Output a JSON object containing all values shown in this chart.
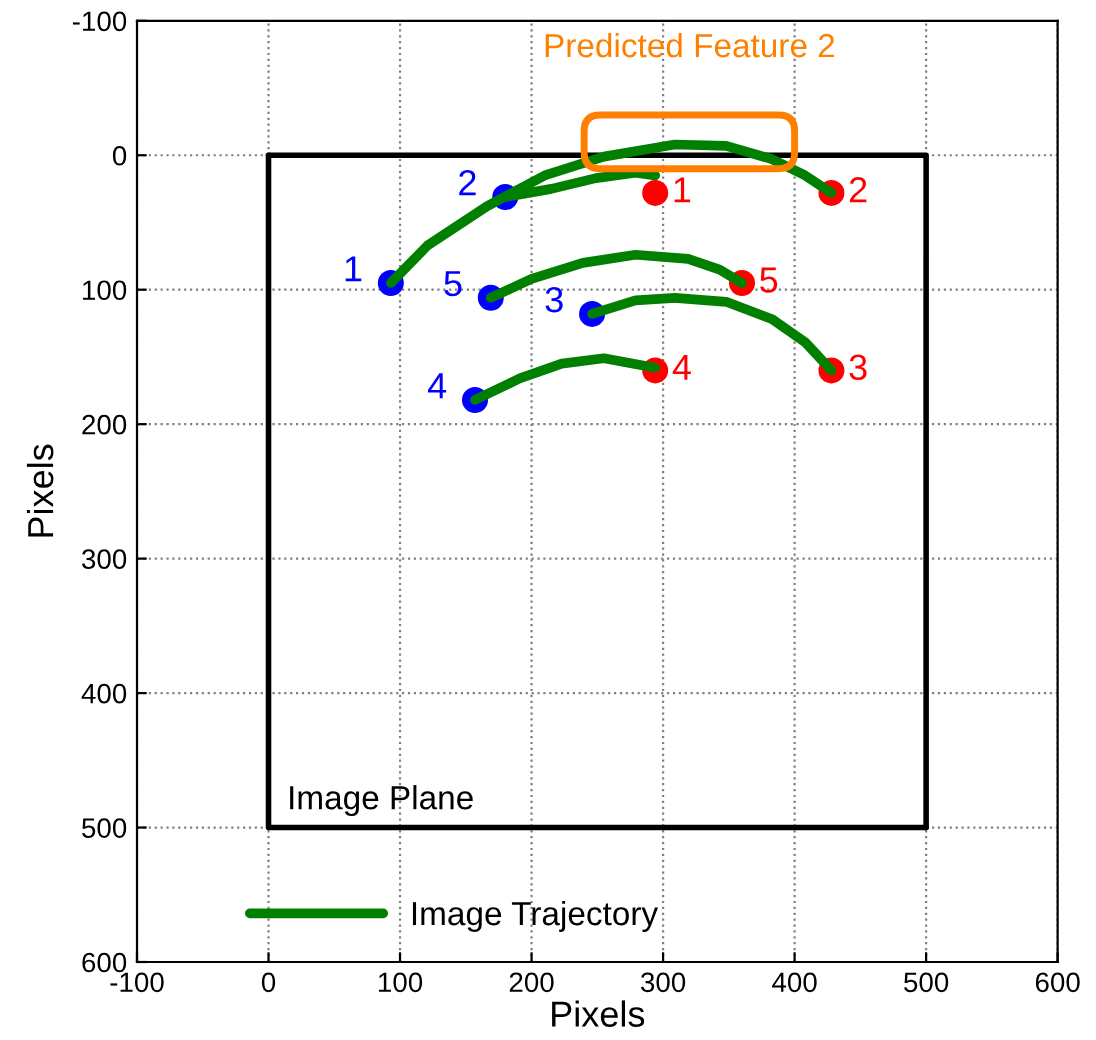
{
  "chart_data": {
    "type": "line",
    "xlabel": "Pixels",
    "ylabel": "Pixels",
    "xlim": [
      -100,
      600
    ],
    "ylim": [
      600,
      -100
    ],
    "xticks": [
      -100,
      0,
      100,
      200,
      300,
      400,
      500,
      600
    ],
    "yticks": [
      -100,
      0,
      100,
      200,
      300,
      400,
      500,
      600
    ],
    "grid": true,
    "legend": "bottom left",
    "line_style": "solid",
    "series": [
      {
        "color": "#000000",
        "x": [
          0,
          500,
          500
        ],
        "values": [
          0,
          0,
          500
        ]
      },
      {
        "color": "#000000",
        "x": [
          0,
          0,
          500
        ],
        "values": [
          0,
          500,
          500
        ]
      },
      {
        "name": "Image Trajectory",
        "color": "#007f00",
        "x": [
          93,
          121,
          166,
          210,
          255,
          309,
          348,
          383,
          408,
          428
        ],
        "values": [
          95,
          67,
          38,
          15,
          1,
          -8,
          -7,
          3,
          15,
          28
        ]
      },
      {
        "color": "#007f00",
        "x": [
          180,
          215,
          249,
          279,
          294
        ],
        "values": [
          31,
          25,
          17,
          13,
          15
        ]
      },
      {
        "color": "#007f00",
        "x": [
          169,
          200,
          239,
          279,
          319,
          343,
          360
        ],
        "values": [
          106,
          92,
          80,
          74,
          77,
          85,
          95
        ]
      },
      {
        "color": "#007f00",
        "x": [
          246,
          279,
          309,
          348,
          383,
          408,
          428
        ],
        "values": [
          118,
          108,
          106,
          109,
          122,
          139,
          160
        ]
      },
      {
        "color": "#007f00",
        "x": [
          157,
          191,
          223,
          255,
          294
        ],
        "values": [
          182,
          166,
          155,
          151,
          158
        ]
      },
      {
        "type": "scatter",
        "color": "#0000ff",
        "marker": "circle",
        "x": [
          93,
          180,
          246,
          157,
          169
        ],
        "values": [
          95,
          31,
          118,
          182,
          106
        ]
      },
      {
        "type": "scatter",
        "color": "#ff0000",
        "marker": "circle",
        "x": [
          294,
          428,
          428,
          294,
          360
        ],
        "values": [
          28,
          28,
          160,
          160,
          95
        ]
      }
    ],
    "annotations": [
      "Image Plane",
      {
        "text": "Predicted Feature 2",
        "x": 320,
        "y": -10
      },
      {
        "text": "1",
        "x": 93,
        "y": 95
      },
      {
        "text": "2",
        "x": 180,
        "y": 31
      },
      {
        "text": "3",
        "x": 246,
        "y": 118
      },
      {
        "text": "4",
        "x": 157,
        "y": 182
      },
      {
        "text": "5",
        "x": 169,
        "y": 106
      },
      {
        "text": "1",
        "x": 294,
        "y": 28
      },
      {
        "text": "2",
        "x": 428,
        "y": 28
      },
      {
        "text": "3",
        "x": 428,
        "y": 160
      },
      {
        "text": "4",
        "x": 294,
        "y": 160
      },
      {
        "text": "5",
        "x": 360,
        "y": 95
      }
    ]
  }
}
